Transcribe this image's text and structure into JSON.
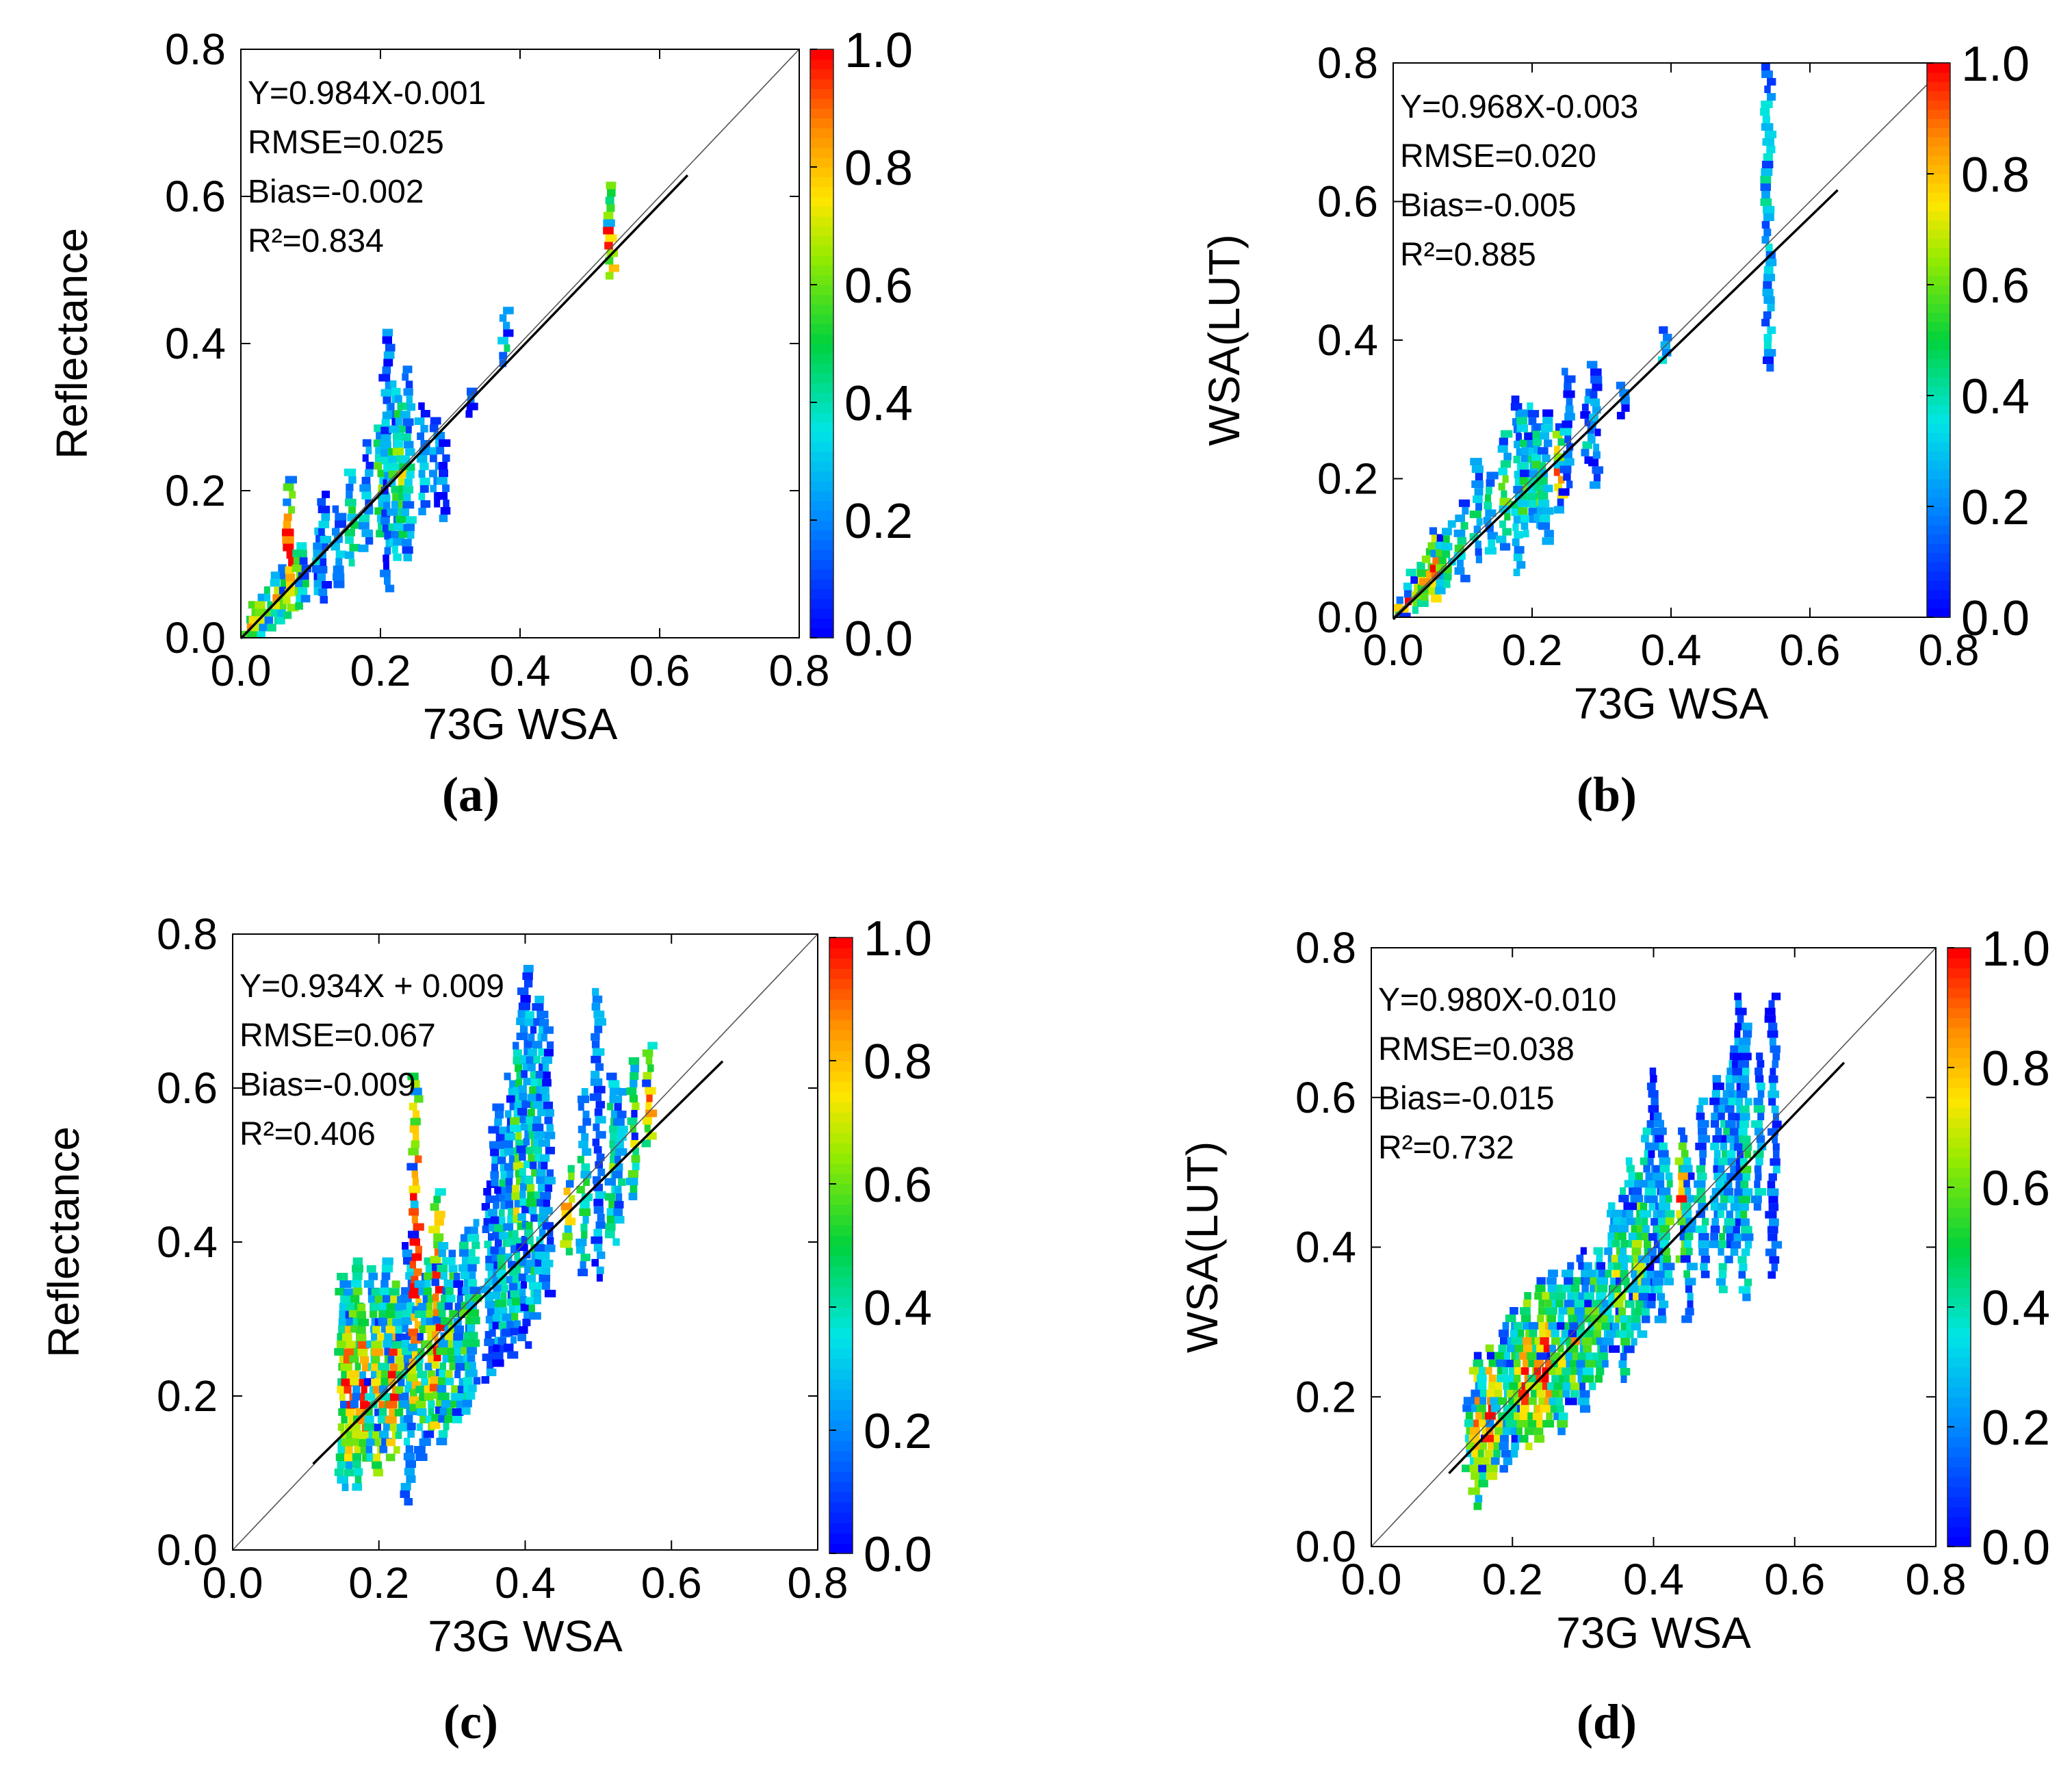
{
  "chart_data": [
    {
      "type": "scatter",
      "panel_label": "a",
      "caption": "(a)",
      "xlabel": "73G WSA",
      "ylabel": "Reflectance",
      "xlim": [
        0.0,
        0.8
      ],
      "ylim": [
        0.0,
        0.8
      ],
      "xticks": [
        "0.0",
        "0.2",
        "0.4",
        "0.6",
        "0.8"
      ],
      "yticks": [
        "0.0",
        "0.2",
        "0.4",
        "0.6",
        "0.8"
      ],
      "stats": [
        "Y=0.984X-0.001",
        "RMSE=0.025",
        "Bias=-0.002",
        "R²=0.834"
      ],
      "fit": {
        "slope": 0.984,
        "intercept": -0.001,
        "x_range": [
          0.0,
          0.64
        ]
      },
      "one_to_one": true,
      "colorbar": {
        "ticks": [
          "0.0",
          "0.2",
          "0.4",
          "0.6",
          "0.8",
          "1.0"
        ],
        "range": [
          0.0,
          1.0
        ]
      },
      "columns": [
        {
          "x": 0.01,
          "y0": 0.0,
          "y1": 0.03,
          "c": 0.8
        },
        {
          "x": 0.02,
          "y0": 0.0,
          "y1": 0.05,
          "c": 0.9
        },
        {
          "x": 0.03,
          "y0": 0.0,
          "y1": 0.06,
          "c": 0.7
        },
        {
          "x": 0.04,
          "y0": 0.01,
          "y1": 0.07,
          "c": 0.6
        },
        {
          "x": 0.05,
          "y0": 0.02,
          "y1": 0.09,
          "c": 0.7
        },
        {
          "x": 0.06,
          "y0": 0.02,
          "y1": 0.1,
          "c": 0.5
        },
        {
          "x": 0.07,
          "y0": 0.03,
          "y1": 0.22,
          "c": 1.0
        },
        {
          "x": 0.08,
          "y0": 0.04,
          "y1": 0.12,
          "c": 0.6
        },
        {
          "x": 0.09,
          "y0": 0.05,
          "y1": 0.13,
          "c": 0.5
        },
        {
          "x": 0.11,
          "y0": 0.06,
          "y1": 0.15,
          "c": 0.3
        },
        {
          "x": 0.12,
          "y0": 0.05,
          "y1": 0.2,
          "c": 0.2
        },
        {
          "x": 0.14,
          "y0": 0.07,
          "y1": 0.18,
          "c": 0.3
        },
        {
          "x": 0.16,
          "y0": 0.1,
          "y1": 0.23,
          "c": 0.4
        },
        {
          "x": 0.18,
          "y0": 0.12,
          "y1": 0.27,
          "c": 0.3
        },
        {
          "x": 0.2,
          "y0": 0.14,
          "y1": 0.29,
          "c": 0.5
        },
        {
          "x": 0.21,
          "y0": 0.06,
          "y1": 0.42,
          "c": 0.2
        },
        {
          "x": 0.22,
          "y0": 0.1,
          "y1": 0.35,
          "c": 0.4
        },
        {
          "x": 0.23,
          "y0": 0.13,
          "y1": 0.33,
          "c": 0.6
        },
        {
          "x": 0.24,
          "y0": 0.1,
          "y1": 0.37,
          "c": 0.3
        },
        {
          "x": 0.26,
          "y0": 0.17,
          "y1": 0.32,
          "c": 0.3
        },
        {
          "x": 0.28,
          "y0": 0.18,
          "y1": 0.3,
          "c": 0.2
        },
        {
          "x": 0.29,
          "y0": 0.16,
          "y1": 0.28,
          "c": 0.1
        },
        {
          "x": 0.33,
          "y0": 0.3,
          "y1": 0.34,
          "c": 0.1
        },
        {
          "x": 0.38,
          "y0": 0.37,
          "y1": 0.45,
          "c": 0.4
        },
        {
          "x": 0.53,
          "y0": 0.49,
          "y1": 0.62,
          "c": 0.9
        }
      ]
    },
    {
      "type": "scatter",
      "panel_label": "b",
      "caption": "(b)",
      "xlabel": "73G WSA",
      "ylabel": "WSA(LUT)",
      "xlim": [
        0.0,
        0.8
      ],
      "ylim": [
        0.0,
        0.8
      ],
      "xticks": [
        "0.0",
        "0.2",
        "0.4",
        "0.6",
        "0.8"
      ],
      "yticks": [
        "0.0",
        "0.2",
        "0.4",
        "0.6",
        "0.8"
      ],
      "stats": [
        "Y=0.968X-0.003",
        "RMSE=0.020",
        "Bias=-0.005",
        "R²=0.885"
      ],
      "fit": {
        "slope": 0.968,
        "intercept": -0.003,
        "x_range": [
          0.0,
          0.64
        ]
      },
      "one_to_one": true,
      "colorbar": {
        "ticks": [
          "0.0",
          "0.2",
          "0.4",
          "0.6",
          "0.8",
          "1.0"
        ],
        "range": [
          0.0,
          1.0
        ]
      },
      "columns": [
        {
          "x": 0.01,
          "y0": 0.0,
          "y1": 0.03,
          "c": 0.8
        },
        {
          "x": 0.02,
          "y0": 0.0,
          "y1": 0.05,
          "c": 0.9
        },
        {
          "x": 0.03,
          "y0": 0.0,
          "y1": 0.07,
          "c": 0.8
        },
        {
          "x": 0.04,
          "y0": 0.01,
          "y1": 0.08,
          "c": 0.7
        },
        {
          "x": 0.05,
          "y0": 0.02,
          "y1": 0.1,
          "c": 0.8
        },
        {
          "x": 0.06,
          "y0": 0.02,
          "y1": 0.13,
          "c": 1.0
        },
        {
          "x": 0.07,
          "y0": 0.03,
          "y1": 0.12,
          "c": 0.6
        },
        {
          "x": 0.08,
          "y0": 0.04,
          "y1": 0.14,
          "c": 0.5
        },
        {
          "x": 0.1,
          "y0": 0.05,
          "y1": 0.17,
          "c": 0.4
        },
        {
          "x": 0.12,
          "y0": 0.08,
          "y1": 0.23,
          "c": 0.3
        },
        {
          "x": 0.14,
          "y0": 0.09,
          "y1": 0.21,
          "c": 0.4
        },
        {
          "x": 0.16,
          "y0": 0.1,
          "y1": 0.27,
          "c": 0.5
        },
        {
          "x": 0.18,
          "y0": 0.06,
          "y1": 0.32,
          "c": 0.3
        },
        {
          "x": 0.19,
          "y0": 0.12,
          "y1": 0.3,
          "c": 0.5
        },
        {
          "x": 0.2,
          "y0": 0.14,
          "y1": 0.31,
          "c": 0.4
        },
        {
          "x": 0.21,
          "y0": 0.13,
          "y1": 0.28,
          "c": 0.6
        },
        {
          "x": 0.22,
          "y0": 0.1,
          "y1": 0.3,
          "c": 0.3
        },
        {
          "x": 0.24,
          "y0": 0.15,
          "y1": 0.28,
          "c": 0.8
        },
        {
          "x": 0.25,
          "y0": 0.18,
          "y1": 0.36,
          "c": 0.2
        },
        {
          "x": 0.28,
          "y0": 0.22,
          "y1": 0.33,
          "c": 0.3
        },
        {
          "x": 0.29,
          "y0": 0.18,
          "y1": 0.37,
          "c": 0.1
        },
        {
          "x": 0.33,
          "y0": 0.29,
          "y1": 0.34,
          "c": 0.1
        },
        {
          "x": 0.39,
          "y0": 0.37,
          "y1": 0.42,
          "c": 0.4
        },
        {
          "x": 0.54,
          "y0": 0.36,
          "y1": 0.8,
          "c": 0.3
        }
      ]
    },
    {
      "type": "scatter",
      "panel_label": "c",
      "caption": "(c)",
      "xlabel": "73G WSA",
      "ylabel": "Reflectance",
      "xlim": [
        0.0,
        0.8
      ],
      "ylim": [
        0.0,
        0.8
      ],
      "xticks": [
        "0.0",
        "0.2",
        "0.4",
        "0.6",
        "0.8"
      ],
      "yticks": [
        "0.0",
        "0.2",
        "0.4",
        "0.6",
        "0.8"
      ],
      "stats": [
        "Y=0.934X + 0.009",
        "RMSE=0.067",
        "Bias=-0.009",
        "R²=0.406"
      ],
      "fit": {
        "slope": 0.934,
        "intercept": 0.009,
        "x_range": [
          0.11,
          0.67
        ]
      },
      "one_to_one": true,
      "colorbar": {
        "ticks": [
          "0.0",
          "0.2",
          "0.4",
          "0.6",
          "0.8",
          "1.0"
        ],
        "range": [
          0.0,
          1.0
        ]
      },
      "columns": [
        {
          "x": 0.15,
          "y0": 0.08,
          "y1": 0.36,
          "c": 0.6
        },
        {
          "x": 0.16,
          "y0": 0.1,
          "y1": 0.34,
          "c": 0.9
        },
        {
          "x": 0.17,
          "y0": 0.08,
          "y1": 0.38,
          "c": 0.7
        },
        {
          "x": 0.18,
          "y0": 0.11,
          "y1": 0.32,
          "c": 1.0
        },
        {
          "x": 0.19,
          "y0": 0.12,
          "y1": 0.37,
          "c": 0.5
        },
        {
          "x": 0.2,
          "y0": 0.1,
          "y1": 0.34,
          "c": 0.8
        },
        {
          "x": 0.21,
          "y0": 0.13,
          "y1": 0.38,
          "c": 0.4
        },
        {
          "x": 0.22,
          "y0": 0.12,
          "y1": 0.35,
          "c": 0.9
        },
        {
          "x": 0.23,
          "y0": 0.14,
          "y1": 0.33,
          "c": 0.6
        },
        {
          "x": 0.24,
          "y0": 0.06,
          "y1": 0.4,
          "c": 0.3
        },
        {
          "x": 0.25,
          "y0": 0.18,
          "y1": 0.62,
          "c": 1.0
        },
        {
          "x": 0.26,
          "y0": 0.12,
          "y1": 0.36,
          "c": 0.5
        },
        {
          "x": 0.27,
          "y0": 0.15,
          "y1": 0.38,
          "c": 0.7
        },
        {
          "x": 0.28,
          "y0": 0.16,
          "y1": 0.47,
          "c": 1.0
        },
        {
          "x": 0.29,
          "y0": 0.14,
          "y1": 0.4,
          "c": 0.4
        },
        {
          "x": 0.3,
          "y0": 0.17,
          "y1": 0.39,
          "c": 0.6
        },
        {
          "x": 0.31,
          "y0": 0.16,
          "y1": 0.36,
          "c": 0.3
        },
        {
          "x": 0.32,
          "y0": 0.18,
          "y1": 0.42,
          "c": 0.5
        },
        {
          "x": 0.33,
          "y0": 0.2,
          "y1": 0.43,
          "c": 0.4
        },
        {
          "x": 0.35,
          "y0": 0.22,
          "y1": 0.48,
          "c": 0.3
        },
        {
          "x": 0.36,
          "y0": 0.24,
          "y1": 0.58,
          "c": 0.2
        },
        {
          "x": 0.37,
          "y0": 0.26,
          "y1": 0.55,
          "c": 0.4
        },
        {
          "x": 0.38,
          "y0": 0.25,
          "y1": 0.62,
          "c": 0.3
        },
        {
          "x": 0.39,
          "y0": 0.28,
          "y1": 0.66,
          "c": 0.6
        },
        {
          "x": 0.4,
          "y0": 0.26,
          "y1": 0.76,
          "c": 0.2
        },
        {
          "x": 0.41,
          "y0": 0.3,
          "y1": 0.7,
          "c": 0.5
        },
        {
          "x": 0.42,
          "y0": 0.32,
          "y1": 0.72,
          "c": 0.3
        },
        {
          "x": 0.43,
          "y0": 0.33,
          "y1": 0.69,
          "c": 0.2
        },
        {
          "x": 0.46,
          "y0": 0.38,
          "y1": 0.5,
          "c": 0.9
        },
        {
          "x": 0.48,
          "y0": 0.36,
          "y1": 0.6,
          "c": 0.4
        },
        {
          "x": 0.5,
          "y0": 0.35,
          "y1": 0.73,
          "c": 0.2
        },
        {
          "x": 0.52,
          "y0": 0.4,
          "y1": 0.62,
          "c": 0.5
        },
        {
          "x": 0.53,
          "y0": 0.42,
          "y1": 0.6,
          "c": 0.3
        },
        {
          "x": 0.55,
          "y0": 0.45,
          "y1": 0.64,
          "c": 0.6
        },
        {
          "x": 0.57,
          "y0": 0.52,
          "y1": 0.66,
          "c": 0.8
        }
      ]
    },
    {
      "type": "scatter",
      "panel_label": "d",
      "caption": "(d)",
      "xlabel": "73G WSA",
      "ylabel": "WSA(LUT)",
      "xlim": [
        0.0,
        0.8
      ],
      "ylim": [
        0.0,
        0.8
      ],
      "xticks": [
        "0.0",
        "0.2",
        "0.4",
        "0.6",
        "0.8"
      ],
      "yticks": [
        "0.0",
        "0.2",
        "0.4",
        "0.6",
        "0.8"
      ],
      "stats": [
        "Y=0.980X-0.010",
        "RMSE=0.038",
        "Bias=-0.015",
        "R²=0.732"
      ],
      "fit": {
        "slope": 0.98,
        "intercept": -0.01,
        "x_range": [
          0.11,
          0.67
        ]
      },
      "one_to_one": true,
      "colorbar": {
        "ticks": [
          "0.0",
          "0.2",
          "0.4",
          "0.6",
          "0.8",
          "1.0"
        ],
        "range": [
          0.0,
          1.0
        ]
      },
      "columns": [
        {
          "x": 0.14,
          "y0": 0.1,
          "y1": 0.2,
          "c": 0.5
        },
        {
          "x": 0.15,
          "y0": 0.05,
          "y1": 0.26,
          "c": 0.9
        },
        {
          "x": 0.16,
          "y0": 0.08,
          "y1": 0.24,
          "c": 0.7
        },
        {
          "x": 0.17,
          "y0": 0.09,
          "y1": 0.27,
          "c": 1.0
        },
        {
          "x": 0.18,
          "y0": 0.11,
          "y1": 0.26,
          "c": 0.8
        },
        {
          "x": 0.19,
          "y0": 0.1,
          "y1": 0.3,
          "c": 0.4
        },
        {
          "x": 0.2,
          "y0": 0.12,
          "y1": 0.32,
          "c": 0.5
        },
        {
          "x": 0.21,
          "y0": 0.14,
          "y1": 0.3,
          "c": 0.7
        },
        {
          "x": 0.22,
          "y0": 0.13,
          "y1": 0.34,
          "c": 0.9
        },
        {
          "x": 0.23,
          "y0": 0.15,
          "y1": 0.3,
          "c": 0.6
        },
        {
          "x": 0.24,
          "y0": 0.14,
          "y1": 0.36,
          "c": 0.8
        },
        {
          "x": 0.25,
          "y0": 0.16,
          "y1": 0.34,
          "c": 1.0
        },
        {
          "x": 0.26,
          "y0": 0.17,
          "y1": 0.37,
          "c": 0.5
        },
        {
          "x": 0.27,
          "y0": 0.15,
          "y1": 0.35,
          "c": 0.6
        },
        {
          "x": 0.28,
          "y0": 0.19,
          "y1": 0.38,
          "c": 0.4
        },
        {
          "x": 0.29,
          "y0": 0.2,
          "y1": 0.36,
          "c": 0.7
        },
        {
          "x": 0.3,
          "y0": 0.18,
          "y1": 0.4,
          "c": 0.3
        },
        {
          "x": 0.31,
          "y0": 0.21,
          "y1": 0.38,
          "c": 0.5
        },
        {
          "x": 0.32,
          "y0": 0.22,
          "y1": 0.4,
          "c": 0.6
        },
        {
          "x": 0.33,
          "y0": 0.24,
          "y1": 0.38,
          "c": 0.4
        },
        {
          "x": 0.34,
          "y0": 0.26,
          "y1": 0.46,
          "c": 0.3
        },
        {
          "x": 0.35,
          "y0": 0.28,
          "y1": 0.45,
          "c": 0.6
        },
        {
          "x": 0.36,
          "y0": 0.22,
          "y1": 0.48,
          "c": 0.5
        },
        {
          "x": 0.37,
          "y0": 0.26,
          "y1": 0.52,
          "c": 0.4
        },
        {
          "x": 0.38,
          "y0": 0.28,
          "y1": 0.5,
          "c": 0.7
        },
        {
          "x": 0.39,
          "y0": 0.3,
          "y1": 0.56,
          "c": 0.4
        },
        {
          "x": 0.4,
          "y0": 0.32,
          "y1": 0.64,
          "c": 0.2
        },
        {
          "x": 0.41,
          "y0": 0.3,
          "y1": 0.58,
          "c": 0.3
        },
        {
          "x": 0.42,
          "y0": 0.35,
          "y1": 0.52,
          "c": 0.5
        },
        {
          "x": 0.44,
          "y0": 0.38,
          "y1": 0.56,
          "c": 0.8
        },
        {
          "x": 0.45,
          "y0": 0.3,
          "y1": 0.52,
          "c": 0.4
        },
        {
          "x": 0.47,
          "y0": 0.36,
          "y1": 0.6,
          "c": 0.3
        },
        {
          "x": 0.49,
          "y0": 0.4,
          "y1": 0.63,
          "c": 0.2
        },
        {
          "x": 0.5,
          "y0": 0.34,
          "y1": 0.61,
          "c": 0.4
        },
        {
          "x": 0.51,
          "y0": 0.38,
          "y1": 0.66,
          "c": 0.3
        },
        {
          "x": 0.52,
          "y0": 0.4,
          "y1": 0.74,
          "c": 0.2
        },
        {
          "x": 0.53,
          "y0": 0.33,
          "y1": 0.7,
          "c": 0.4
        },
        {
          "x": 0.55,
          "y0": 0.45,
          "y1": 0.66,
          "c": 0.3
        },
        {
          "x": 0.57,
          "y0": 0.36,
          "y1": 0.74,
          "c": 0.2
        }
      ]
    }
  ]
}
